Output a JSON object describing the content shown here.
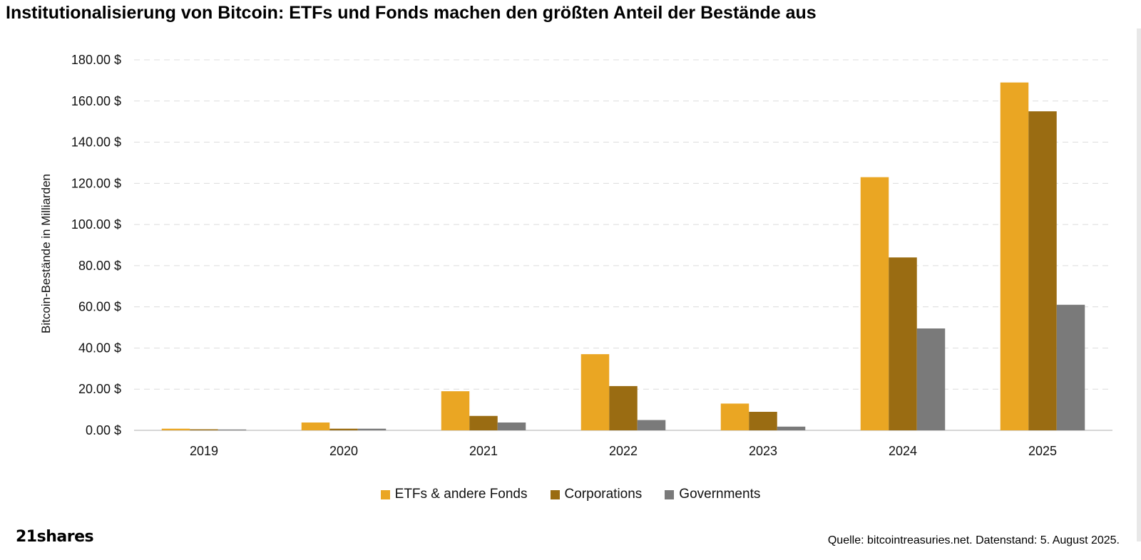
{
  "title": "Institutionalisierung von Bitcoin: ETFs und Fonds machen den größten Anteil der Bestände aus",
  "logo_text": "21shares",
  "source": "Quelle: bitcointreasuries.net. Datenstand: 5. August 2025.",
  "chart_data": {
    "type": "bar",
    "title": "Institutionalisierung von Bitcoin: ETFs und Fonds machen den größten Anteil der Bestände aus",
    "xlabel": "",
    "ylabel": "Bitcoin-Bestände in Milliarden",
    "ylim": [
      0,
      180
    ],
    "yticks": [
      "0.00 $",
      "20.00 $",
      "40.00 $",
      "60.00 $",
      "80.00 $",
      "100.00 $",
      "120.00 $",
      "140.00 $",
      "160.00 $",
      "180.00 $"
    ],
    "grid": true,
    "legend_position": "bottom",
    "categories": [
      "2019",
      "2020",
      "2021",
      "2022",
      "2023",
      "2024",
      "2025"
    ],
    "series": [
      {
        "name": "ETFs & andere Fonds",
        "color": "#EAA623",
        "values": [
          0.8,
          3.8,
          19,
          37,
          13,
          123,
          169
        ]
      },
      {
        "name": "Corporations",
        "color": "#9A6C12",
        "values": [
          0.5,
          0.8,
          7,
          21.5,
          9,
          84,
          155
        ]
      },
      {
        "name": "Governments",
        "color": "#7A7A7A",
        "values": [
          0.4,
          0.8,
          3.8,
          5,
          1.8,
          49.5,
          61
        ]
      }
    ]
  }
}
